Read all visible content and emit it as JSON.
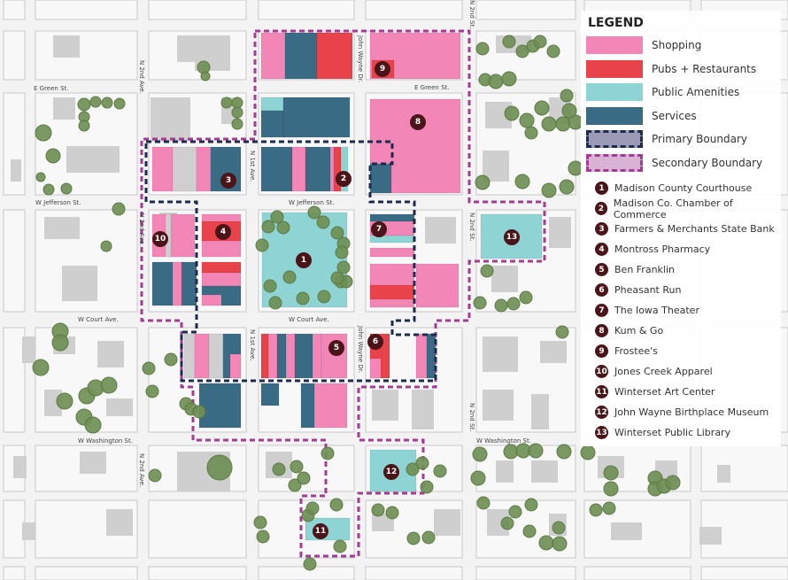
{
  "colors": {
    "shopping": "#f287b7",
    "pubs": "#e8434a",
    "amenities": "#8fd4d4",
    "services": "#3a6b84",
    "primary_boundary": "#1c2b4f",
    "secondary_boundary": "#a33d93",
    "tree": "#6f8f55",
    "building": "#cfcfcf",
    "marker": "#4a1418"
  },
  "streets": {
    "e_green": "E Green St.",
    "w_jefferson_1": "W Jefferson St.",
    "w_jefferson_2": "W Jefferson St.",
    "w_court_1": "W Court Ave.",
    "w_court_2": "W Court Ave.",
    "w_washington_1": "W Washington St.",
    "w_washington_2": "W Washington St.",
    "n_2nd_ave_1": "N 2nd Ave.",
    "n_2nd_ave_2": "N 2nd Ave.",
    "n_2nd_ave_3": "N 2nd Ave.",
    "n_1st_ave_1": "N 1st Ave.",
    "n_1st_ave_2": "N 1st Ave.",
    "john_wayne_1": "John Wayne Dr.",
    "john_wayne_2": "John Wayne Dr.",
    "n_2nd_st_1": "N 2nd St.",
    "n_2nd_st_2": "N 2nd St.",
    "n_2nd_st_3": "N 2nd St."
  },
  "legend": {
    "title": "LEGEND",
    "items": [
      {
        "label": "Shopping",
        "color": "#f287b7"
      },
      {
        "label": "Pubs + Restaurants",
        "color": "#e8434a"
      },
      {
        "label": "Public Amenities",
        "color": "#8fd4d4"
      },
      {
        "label": "Services",
        "color": "#3a6b84"
      },
      {
        "label": "Primary Boundary",
        "color": "#9b9bb8",
        "border": "#1c2b4f"
      },
      {
        "label": "Secondary Boundary",
        "color": "#d8b3d6",
        "border": "#a33d93"
      }
    ],
    "places": [
      {
        "num": "1",
        "label": "Madison County Courthouse"
      },
      {
        "num": "2",
        "label": "Madison Co. Chamber of Commerce"
      },
      {
        "num": "3",
        "label": "Farmers & Merchants State Bank"
      },
      {
        "num": "4",
        "label": "Montross Pharmacy"
      },
      {
        "num": "5",
        "label": "Ben Franklin"
      },
      {
        "num": "6",
        "label": "Pheasant Run"
      },
      {
        "num": "7",
        "label": "The Iowa Theater"
      },
      {
        "num": "8",
        "label": "Kum & Go"
      },
      {
        "num": "9",
        "label": "Frostee's"
      },
      {
        "num": "10",
        "label": "Jones Creek Apparel"
      },
      {
        "num": "11",
        "label": "Winterset Art Center"
      },
      {
        "num": "12",
        "label": "John Wayne Birthplace Museum"
      },
      {
        "num": "13",
        "label": "Winterset Public Library"
      }
    ]
  }
}
